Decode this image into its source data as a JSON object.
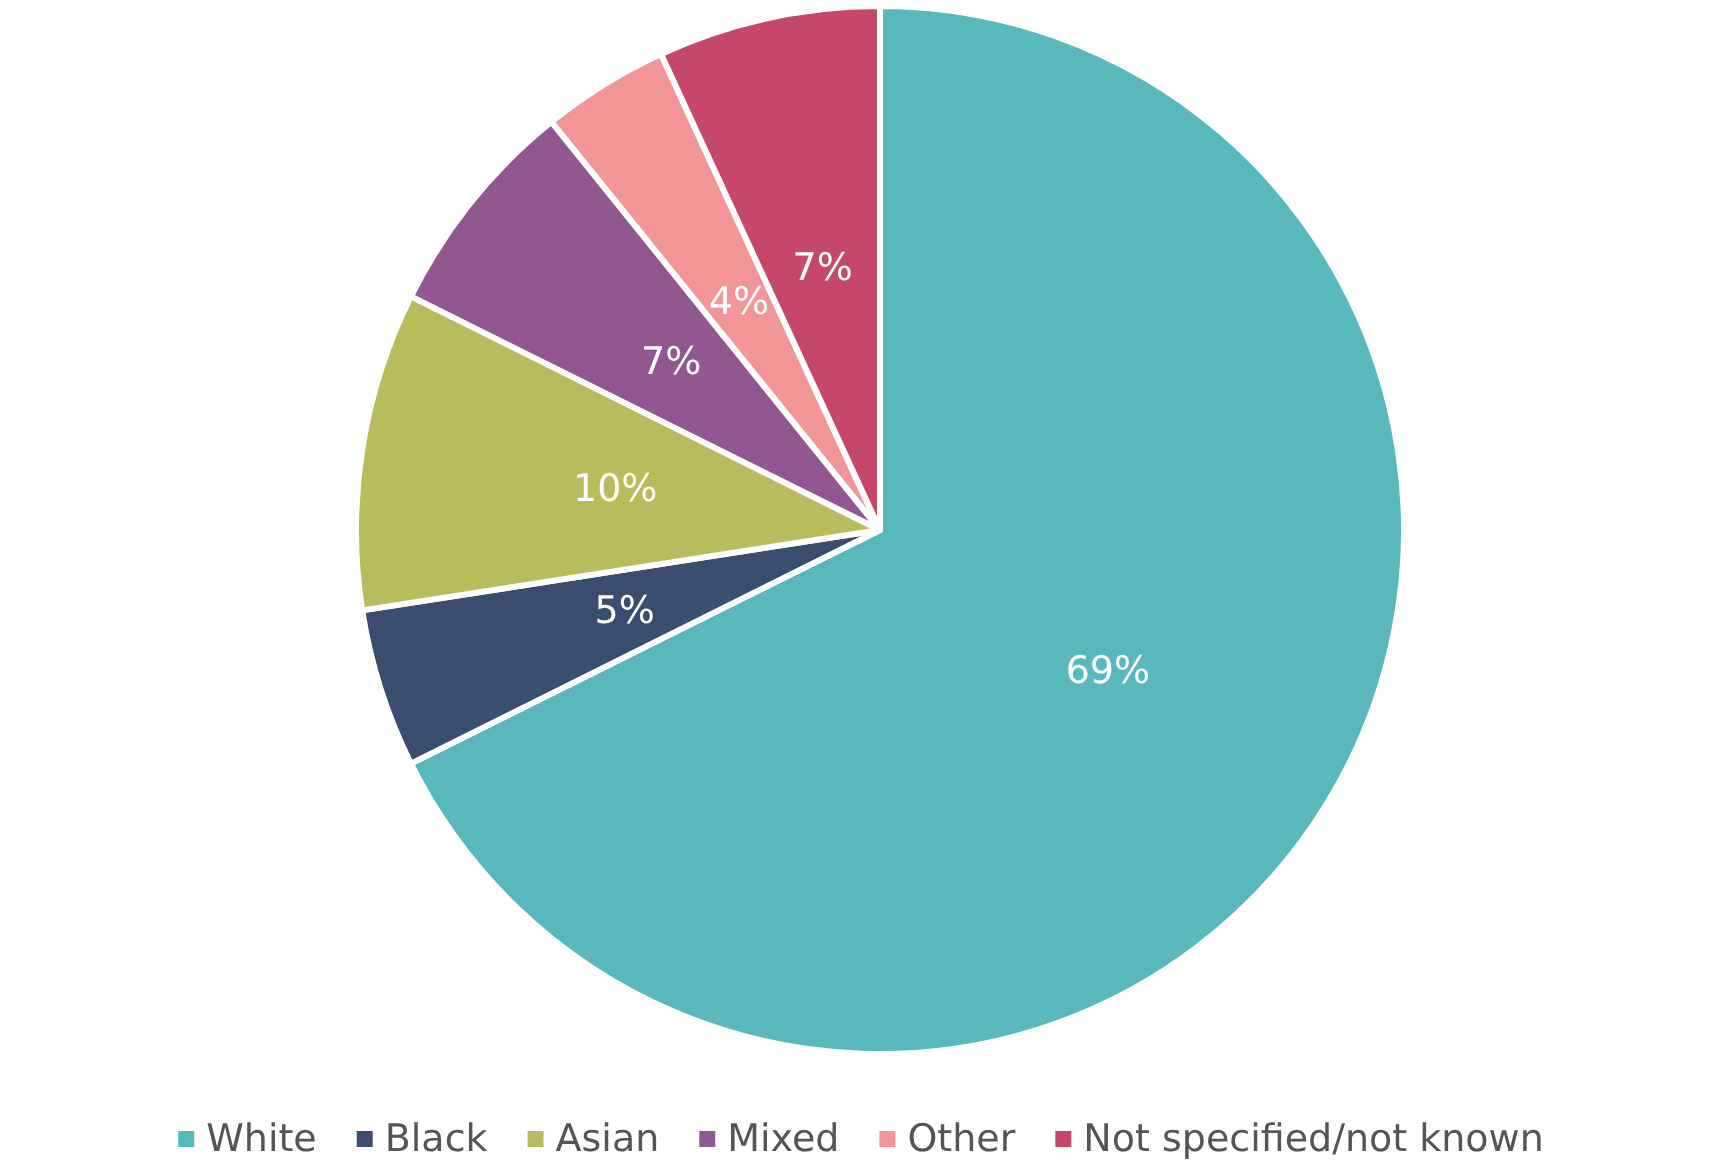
{
  "chart_data": {
    "type": "pie",
    "categories": [
      "White",
      "Black",
      "Asian",
      "Mixed",
      "Other",
      "Not specified/not known"
    ],
    "values": [
      69,
      5,
      10,
      7,
      4,
      7
    ],
    "colors": [
      "#58b8bb",
      "#3b4d6e",
      "#b8bc5c",
      "#925791",
      "#f29597",
      "#c5486b"
    ],
    "value_labels": [
      "69%",
      "5%",
      "10%",
      "7%",
      "4%",
      "7%"
    ],
    "legend": "bottom"
  }
}
